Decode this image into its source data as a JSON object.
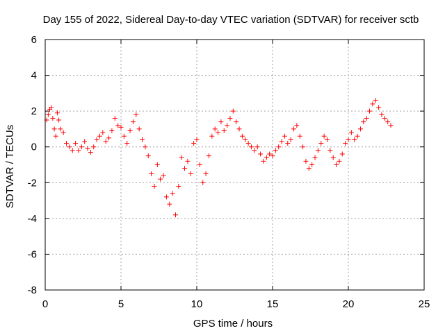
{
  "chart_data": {
    "type": "scatter",
    "title": "Day 155 of 2022, Sidereal Day-to-day VTEC variation (SDTVAR) for receiver sctb",
    "xlabel": "GPS time / hours",
    "ylabel": "SDTVAR / TECUs",
    "xlim": [
      0,
      25
    ],
    "ylim": [
      -8,
      6
    ],
    "xticks": [
      0,
      5,
      10,
      15,
      20,
      25
    ],
    "yticks": [
      -8,
      -6,
      -4,
      -2,
      0,
      2,
      4,
      6
    ],
    "grid": true,
    "marker": "+",
    "marker_color": "#ff0000",
    "series": [
      {
        "name": "SDTVAR",
        "data_summary": "approximate trace of the dense point cloud",
        "x": [
          0.1,
          0.2,
          0.3,
          0.4,
          0.5,
          0.6,
          0.7,
          0.8,
          0.9,
          1.0,
          1.2,
          1.4,
          1.6,
          1.8,
          2.0,
          2.2,
          2.4,
          2.6,
          2.8,
          3.0,
          3.2,
          3.4,
          3.6,
          3.8,
          4.0,
          4.2,
          4.4,
          4.6,
          4.8,
          5.0,
          5.2,
          5.4,
          5.6,
          5.8,
          6.0,
          6.2,
          6.4,
          6.6,
          6.8,
          7.0,
          7.2,
          7.4,
          7.6,
          7.8,
          8.0,
          8.2,
          8.4,
          8.6,
          8.8,
          9.0,
          9.2,
          9.4,
          9.6,
          9.8,
          10.0,
          10.2,
          10.4,
          10.6,
          10.8,
          11.0,
          11.2,
          11.4,
          11.6,
          11.8,
          12.0,
          12.2,
          12.4,
          12.6,
          12.8,
          13.0,
          13.2,
          13.4,
          13.6,
          13.8,
          14.0,
          14.2,
          14.4,
          14.6,
          14.8,
          15.0,
          15.2,
          15.4,
          15.6,
          15.8,
          16.0,
          16.2,
          16.4,
          16.6,
          16.8,
          17.0,
          17.2,
          17.4,
          17.6,
          17.8,
          18.0,
          18.2,
          18.4,
          18.6,
          18.8,
          19.0,
          19.2,
          19.4,
          19.6,
          19.8,
          20.0,
          20.2,
          20.4,
          20.6,
          20.8,
          21.0,
          21.2,
          21.4,
          21.6,
          21.8,
          22.0,
          22.2,
          22.4,
          22.6,
          22.8
        ],
        "y": [
          1.5,
          1.8,
          2.1,
          2.2,
          1.6,
          1.0,
          0.6,
          1.9,
          1.5,
          1.0,
          0.8,
          0.2,
          0.0,
          -0.2,
          0.2,
          -0.2,
          0.0,
          0.3,
          -0.1,
          -0.3,
          0.0,
          0.4,
          0.6,
          0.8,
          0.3,
          0.5,
          0.9,
          1.6,
          1.2,
          1.1,
          0.6,
          0.2,
          0.9,
          1.4,
          1.8,
          1.0,
          0.4,
          0.0,
          -0.5,
          -1.5,
          -2.2,
          -1.0,
          -1.8,
          -1.6,
          -2.8,
          -3.2,
          -2.6,
          -3.8,
          -2.2,
          -0.6,
          -1.2,
          -0.8,
          -1.5,
          0.2,
          0.4,
          -1.0,
          -2.0,
          -1.5,
          -0.5,
          0.6,
          1.0,
          0.8,
          1.4,
          0.9,
          1.2,
          1.6,
          2.0,
          1.4,
          1.0,
          0.6,
          0.4,
          0.2,
          0.0,
          -0.2,
          0.0,
          -0.4,
          -0.8,
          -0.6,
          -0.4,
          -0.5,
          -0.2,
          0.0,
          0.3,
          0.6,
          0.2,
          0.4,
          1.0,
          1.2,
          0.6,
          0.0,
          -0.8,
          -1.2,
          -1.0,
          -0.6,
          -0.2,
          0.2,
          0.6,
          0.4,
          -0.2,
          -0.6,
          -1.0,
          -0.8,
          -0.4,
          0.2,
          0.4,
          0.8,
          0.4,
          0.6,
          1.0,
          1.4,
          1.6,
          2.0,
          2.4,
          2.6,
          2.2,
          1.8,
          1.6,
          1.4,
          1.2
        ]
      }
    ]
  }
}
